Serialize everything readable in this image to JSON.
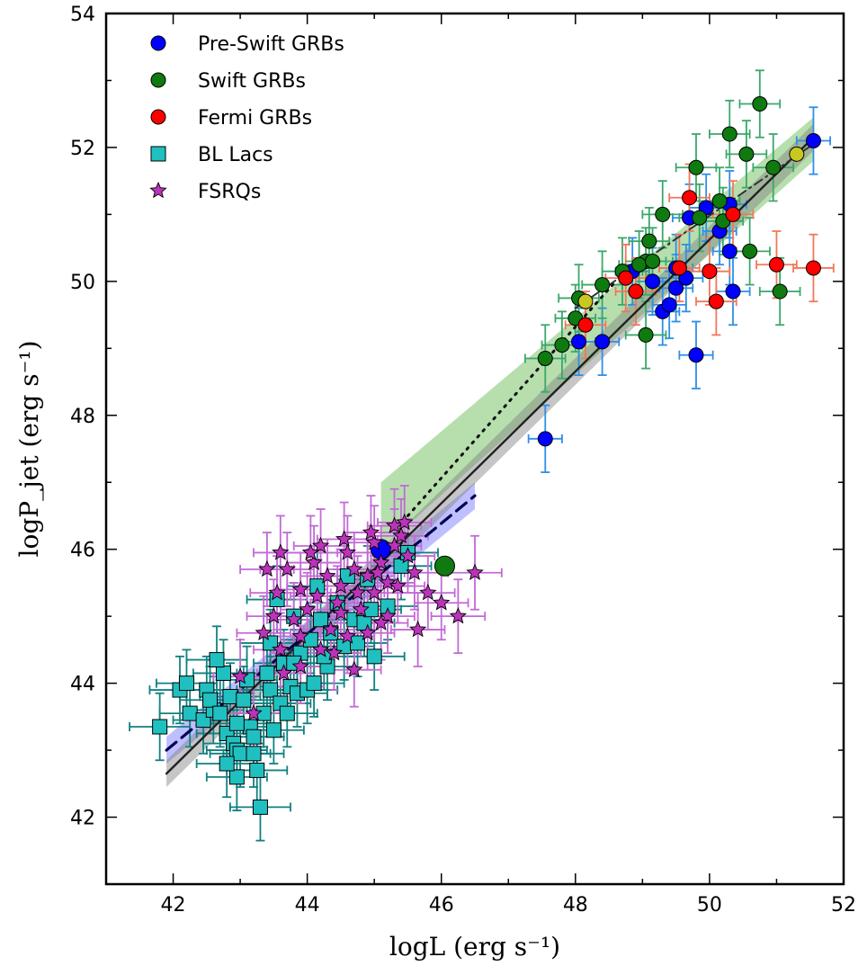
{
  "chart_data": {
    "type": "scatter",
    "xlabel": "logL (erg s⁻¹)",
    "ylabel": "logP_jet (erg s⁻¹)",
    "xlim": [
      41,
      52
    ],
    "ylim": [
      41,
      54
    ],
    "xticks": [
      "42",
      "44",
      "46",
      "48",
      "50",
      "52"
    ],
    "yticks": [
      "42",
      "44",
      "46",
      "48",
      "50",
      "52",
      "54"
    ],
    "grid": false,
    "legend_position": "top-left",
    "colors": {
      "preswift": "#0000ff",
      "preswift_err": "#2e8fe8",
      "swift": "#0f7a0f",
      "swift_err": "#3aa86a",
      "fermi": "#ff0000",
      "fermi_err": "#f0785a",
      "bllac": "#20c0c0",
      "bllac_err": "#128080",
      "fsrq": "#bb33bb",
      "fsrq_err": "#c26ad6",
      "yellow": "#c8c820",
      "band_green": "#7cc46c",
      "band_blue": "#8080ff",
      "band_gray": "#808080"
    },
    "legend": [
      {
        "label": "Pre-Swift GRBs",
        "marker": "circle",
        "color": "#0000ff"
      },
      {
        "label": "Swift GRBs",
        "marker": "circle",
        "color": "#0f7a0f"
      },
      {
        "label": "Fermi GRBs",
        "marker": "circle",
        "color": "#ff0000"
      },
      {
        "label": "BL Lacs",
        "marker": "square",
        "color": "#20c0c0"
      },
      {
        "label": "FSRQs",
        "marker": "star",
        "color": "#bb33bb"
      }
    ],
    "series": [
      {
        "name": "Pre-Swift GRBs",
        "marker": "circle",
        "points": [
          [
            51.55,
            52.1
          ],
          [
            50.3,
            51.15
          ],
          [
            49.95,
            51.1
          ],
          [
            49.7,
            50.95
          ],
          [
            50.15,
            50.75
          ],
          [
            50.3,
            50.45
          ],
          [
            49.5,
            50.2
          ],
          [
            49.15,
            50.0
          ],
          [
            49.65,
            50.05
          ],
          [
            49.5,
            49.9
          ],
          [
            48.85,
            50.15
          ],
          [
            50.35,
            49.85
          ],
          [
            49.3,
            49.55
          ],
          [
            49.4,
            49.65
          ],
          [
            48.05,
            49.1
          ],
          [
            48.4,
            49.1
          ],
          [
            49.8,
            48.9
          ],
          [
            47.55,
            47.65
          ]
        ],
        "xerr": 0.25,
        "yerr": 0.5
      },
      {
        "name": "Swift GRBs",
        "marker": "circle",
        "points": [
          [
            50.75,
            52.65
          ],
          [
            50.3,
            52.2
          ],
          [
            50.55,
            51.9
          ],
          [
            50.95,
            51.7
          ],
          [
            49.8,
            51.7
          ],
          [
            49.3,
            51.0
          ],
          [
            50.15,
            51.2
          ],
          [
            50.2,
            50.9
          ],
          [
            49.85,
            50.95
          ],
          [
            49.1,
            50.6
          ],
          [
            49.05,
            50.3
          ],
          [
            48.95,
            50.25
          ],
          [
            49.15,
            50.3
          ],
          [
            50.6,
            50.45
          ],
          [
            48.7,
            50.15
          ],
          [
            48.4,
            49.95
          ],
          [
            48.05,
            49.75
          ],
          [
            48.0,
            49.45
          ],
          [
            47.8,
            49.05
          ],
          [
            49.05,
            49.2
          ],
          [
            47.55,
            48.85
          ],
          [
            51.05,
            49.85
          ]
        ],
        "xerr": 0.3,
        "yerr": 0.5
      },
      {
        "name": "Fermi GRBs",
        "marker": "circle",
        "points": [
          [
            49.7,
            51.25
          ],
          [
            50.35,
            51.0
          ],
          [
            48.75,
            50.05
          ],
          [
            48.9,
            49.85
          ],
          [
            49.55,
            50.2
          ],
          [
            50.0,
            50.15
          ],
          [
            51.0,
            50.25
          ],
          [
            51.55,
            50.2
          ],
          [
            48.15,
            49.35
          ],
          [
            50.1,
            49.7
          ]
        ],
        "xerr": 0.3,
        "yerr": 0.5
      },
      {
        "name": "Extra GRBs (yellow)",
        "marker": "circle",
        "points": [
          [
            51.3,
            51.9
          ],
          [
            48.15,
            49.7
          ]
        ],
        "xerr": 0,
        "yerr": 0
      },
      {
        "name": "Large markers",
        "marker": "circle",
        "points": [
          [
            45.1,
            46.0
          ],
          [
            46.05,
            45.75
          ]
        ],
        "xerr": 0,
        "yerr": 0
      },
      {
        "name": "BL Lacs",
        "marker": "square",
        "points": [
          [
            41.8,
            43.35
          ],
          [
            42.1,
            43.9
          ],
          [
            42.2,
            44.0
          ],
          [
            42.25,
            43.55
          ],
          [
            42.45,
            43.45
          ],
          [
            42.5,
            43.9
          ],
          [
            42.6,
            43.6
          ],
          [
            42.55,
            43.75
          ],
          [
            42.7,
            43.55
          ],
          [
            42.8,
            43.25
          ],
          [
            42.75,
            44.15
          ],
          [
            42.65,
            44.35
          ],
          [
            42.9,
            43.1
          ],
          [
            42.85,
            43.8
          ],
          [
            42.95,
            43.0
          ],
          [
            42.95,
            42.6
          ],
          [
            43.0,
            42.95
          ],
          [
            43.05,
            43.75
          ],
          [
            43.1,
            44.05
          ],
          [
            43.15,
            43.35
          ],
          [
            43.2,
            42.95
          ],
          [
            43.25,
            42.7
          ],
          [
            43.3,
            42.15
          ],
          [
            43.35,
            43.55
          ],
          [
            43.4,
            44.15
          ],
          [
            43.45,
            43.9
          ],
          [
            43.5,
            43.3
          ],
          [
            43.6,
            43.7
          ],
          [
            43.65,
            44.3
          ],
          [
            43.7,
            43.55
          ],
          [
            43.75,
            43.95
          ],
          [
            43.55,
            45.25
          ],
          [
            43.8,
            45.0
          ],
          [
            43.85,
            43.85
          ],
          [
            43.9,
            44.45
          ],
          [
            44.0,
            43.9
          ],
          [
            44.05,
            44.65
          ],
          [
            44.1,
            44.0
          ],
          [
            44.15,
            45.45
          ],
          [
            44.2,
            44.95
          ],
          [
            44.3,
            44.25
          ],
          [
            44.35,
            44.75
          ],
          [
            44.45,
            45.2
          ],
          [
            44.55,
            44.55
          ],
          [
            44.6,
            45.6
          ],
          [
            44.7,
            44.95
          ],
          [
            44.75,
            44.6
          ],
          [
            44.85,
            44.9
          ],
          [
            44.95,
            45.1
          ],
          [
            45.0,
            44.4
          ],
          [
            45.2,
            45.15
          ],
          [
            45.4,
            45.75
          ],
          [
            45.5,
            45.95
          ],
          [
            43.2,
            43.2
          ],
          [
            43.45,
            44.6
          ],
          [
            42.95,
            43.4
          ],
          [
            43.8,
            44.3
          ],
          [
            44.25,
            44.4
          ],
          [
            42.8,
            42.8
          ],
          [
            44.9,
            45.55
          ]
        ],
        "xerr": 0.45,
        "yerr": 0.5
      },
      {
        "name": "FSRQs",
        "marker": "star",
        "points": [
          [
            43.4,
            45.7
          ],
          [
            43.7,
            45.7
          ],
          [
            43.9,
            45.4
          ],
          [
            43.6,
            45.95
          ],
          [
            44.1,
            45.8
          ],
          [
            44.3,
            45.6
          ],
          [
            44.5,
            45.45
          ],
          [
            44.7,
            45.7
          ],
          [
            44.9,
            45.6
          ],
          [
            45.1,
            45.8
          ],
          [
            45.3,
            46.05
          ],
          [
            45.5,
            45.9
          ],
          [
            44.2,
            46.05
          ],
          [
            44.45,
            45.2
          ],
          [
            44.8,
            45.1
          ],
          [
            45.0,
            45.35
          ],
          [
            45.2,
            45.5
          ],
          [
            45.6,
            45.65
          ],
          [
            45.4,
            46.2
          ],
          [
            45.3,
            46.35
          ],
          [
            45.0,
            46.1
          ],
          [
            44.6,
            45.95
          ],
          [
            44.0,
            45.1
          ],
          [
            43.8,
            44.95
          ],
          [
            44.35,
            44.8
          ],
          [
            44.6,
            44.7
          ],
          [
            44.9,
            44.75
          ],
          [
            45.2,
            45.0
          ],
          [
            44.15,
            45.3
          ],
          [
            43.55,
            45.35
          ],
          [
            43.35,
            44.75
          ],
          [
            43.6,
            44.5
          ],
          [
            43.9,
            44.25
          ],
          [
            44.2,
            44.5
          ],
          [
            44.5,
            45.05
          ],
          [
            44.75,
            45.35
          ],
          [
            45.05,
            45.65
          ],
          [
            45.35,
            45.45
          ],
          [
            45.65,
            44.8
          ],
          [
            46.0,
            45.2
          ],
          [
            46.25,
            45.0
          ],
          [
            46.5,
            45.65
          ],
          [
            43.0,
            44.1
          ],
          [
            43.2,
            43.55
          ],
          [
            43.65,
            44.15
          ],
          [
            43.9,
            44.7
          ],
          [
            44.4,
            44.45
          ],
          [
            44.7,
            44.2
          ],
          [
            45.1,
            44.9
          ],
          [
            45.45,
            46.4
          ],
          [
            45.8,
            45.35
          ],
          [
            44.05,
            45.95
          ],
          [
            44.55,
            46.15
          ],
          [
            44.95,
            46.25
          ],
          [
            43.5,
            45.0
          ]
        ],
        "xerr": 0.4,
        "yerr": 0.55
      }
    ],
    "fit_lines": [
      {
        "name": "solid-fit",
        "style": "solid",
        "x": [
          41.9,
          51.55
        ],
        "y": [
          42.65,
          52.15
        ]
      },
      {
        "name": "dotted-fit",
        "style": "dotted",
        "x": [
          45.5,
          48.6
        ],
        "y": [
          46.5,
          50.0
        ]
      },
      {
        "name": "dashed-blue-fit",
        "style": "dashed",
        "x": [
          41.9,
          46.5
        ],
        "y": [
          43.0,
          46.8
        ]
      },
      {
        "name": "dashed-gray-fit",
        "style": "dashdot",
        "x": [
          48.0,
          51.55
        ],
        "y": [
          49.6,
          52.05
        ]
      }
    ],
    "bands": [
      {
        "name": "green-band",
        "x": [
          45.1,
          51.55
        ],
        "y_lower": [
          46.0,
          51.8
        ],
        "y_upper": [
          47.0,
          52.45
        ]
      },
      {
        "name": "blue-band",
        "x": [
          41.9,
          46.5
        ],
        "y_lower": [
          42.8,
          46.6
        ],
        "y_upper": [
          43.2,
          47.0
        ]
      },
      {
        "name": "gray-band",
        "x": [
          41.9,
          51.55
        ],
        "y_lower": [
          42.45,
          51.95
        ],
        "y_upper": [
          42.85,
          52.35
        ]
      }
    ]
  }
}
